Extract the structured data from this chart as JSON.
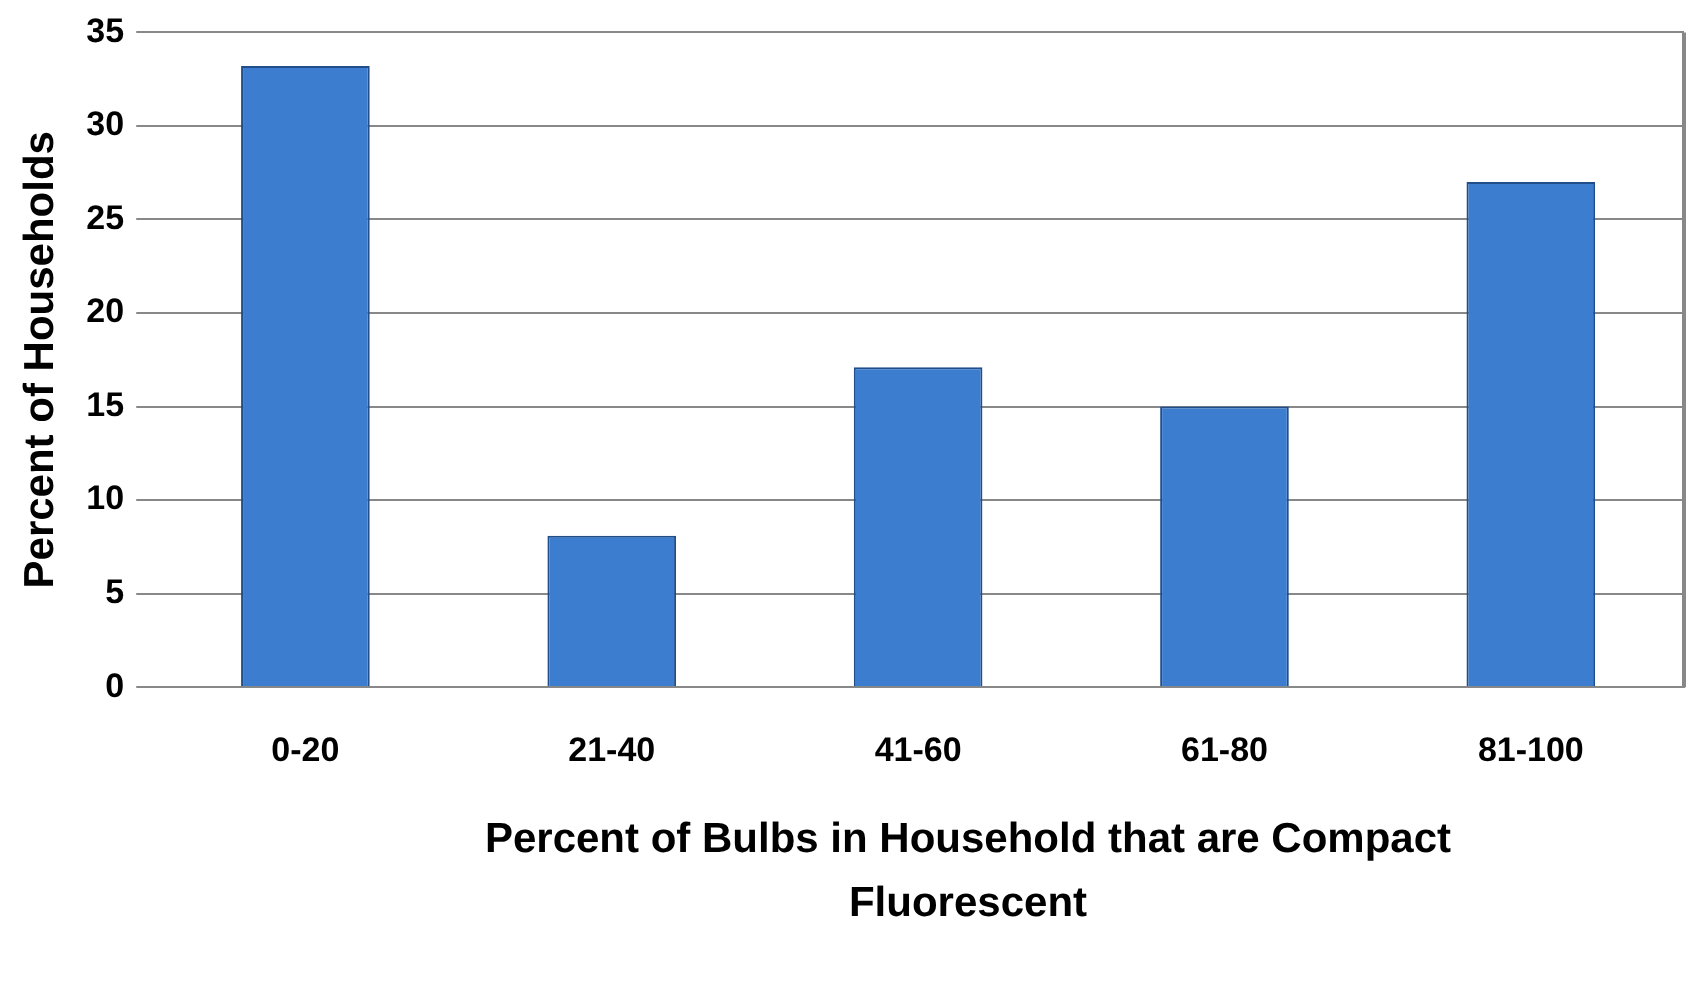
{
  "chart_data": {
    "type": "bar",
    "xlabel": "Percent of Bulbs in Household that are Compact Fluorescent",
    "ylabel": "Percent of Households",
    "categories": [
      "0-20",
      "21-40",
      "41-60",
      "61-80",
      "81-100"
    ],
    "values": [
      33.2,
      8.1,
      17.1,
      15,
      27
    ],
    "color": "#3c7dd0",
    "ylim": [
      0,
      35
    ],
    "yticks": [
      0,
      5,
      10,
      15,
      20,
      25,
      30,
      35
    ],
    "grid": "y",
    "legend": false
  }
}
